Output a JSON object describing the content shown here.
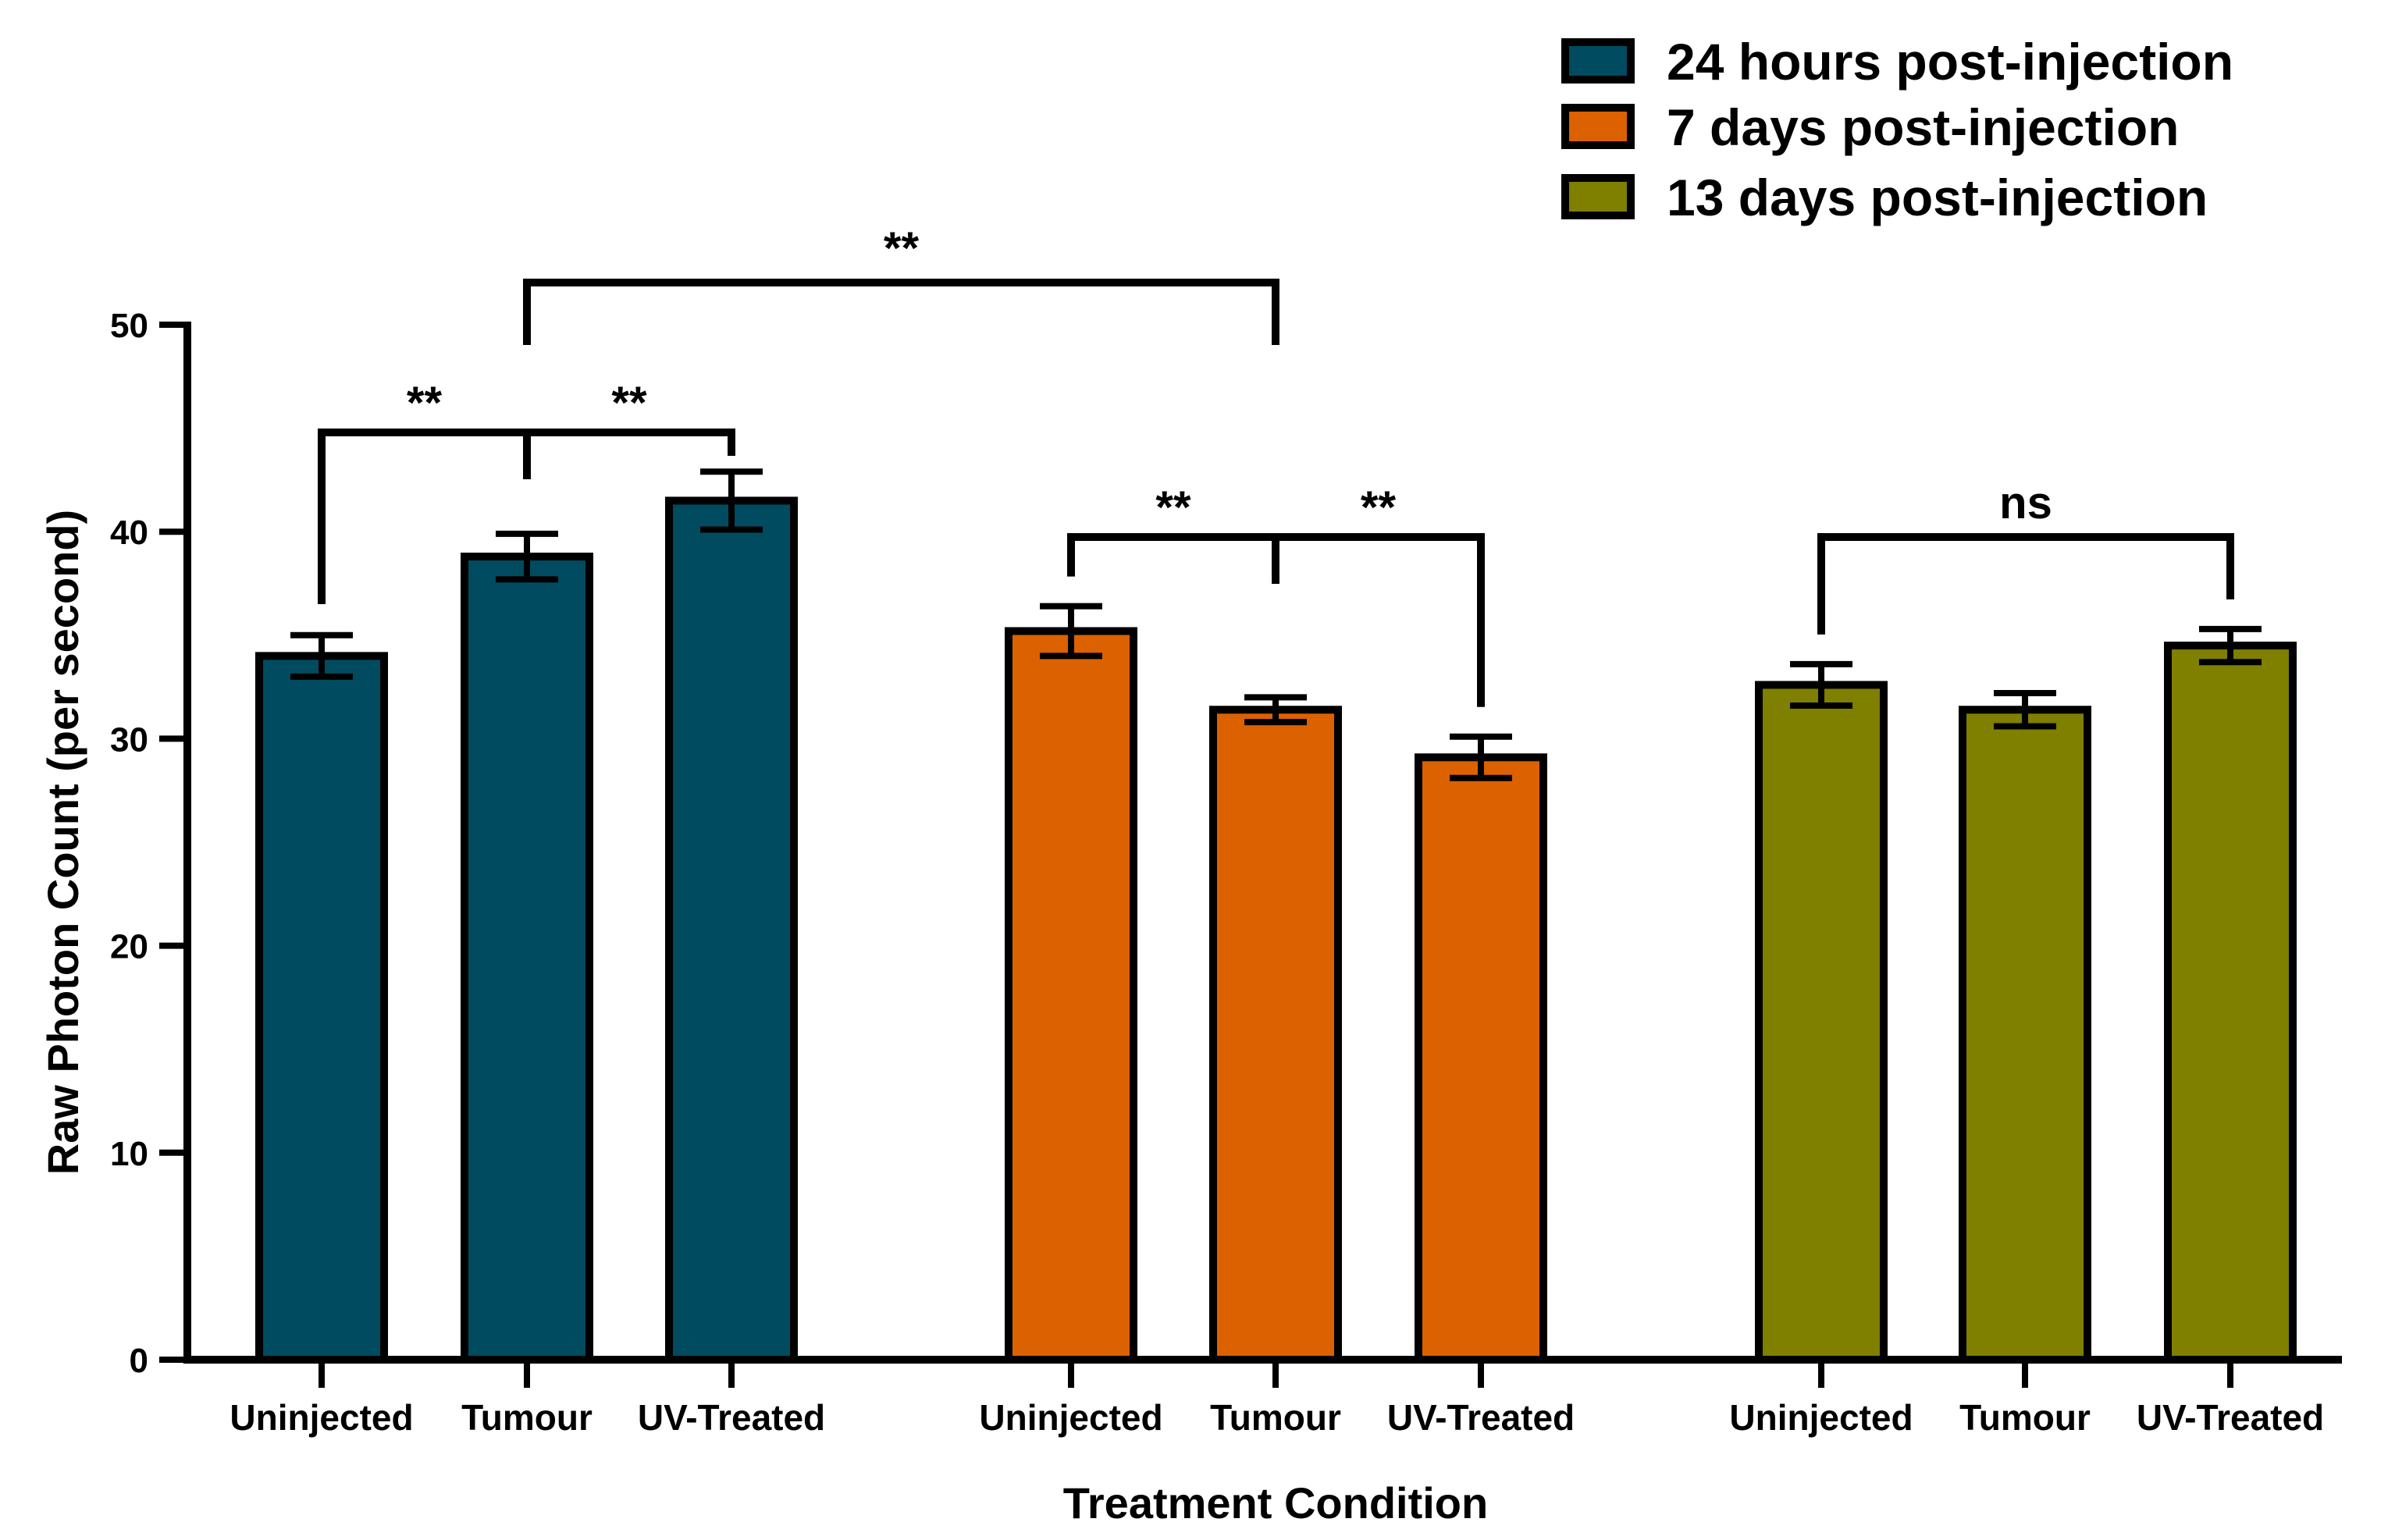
{
  "chart_data": {
    "type": "bar",
    "title": "",
    "xlabel": "Treatment Condition",
    "ylabel": "Raw Photon Count  (per second)",
    "ylim": [
      0,
      50
    ],
    "yticks": [
      "0",
      "10",
      "20",
      "30",
      "40",
      "50"
    ],
    "legend_position": "top-right",
    "groups": [
      {
        "name": "24 hours post-injection",
        "color": "#004b5f",
        "categories": [
          "Uninjected",
          "Tumour",
          "UV-Treated"
        ],
        "values": [
          34.0,
          38.8,
          41.5
        ],
        "errors": [
          1.0,
          1.1,
          1.4
        ]
      },
      {
        "name": "7 days post-injection",
        "color": "#dc6100",
        "categories": [
          "Uninjected",
          "Tumour",
          "UV-Treated"
        ],
        "values": [
          35.2,
          31.4,
          29.1
        ],
        "errors": [
          1.2,
          0.6,
          1.0
        ]
      },
      {
        "name": "13 days post-injection",
        "color": "#7f7f00",
        "categories": [
          "Uninjected",
          "Tumour",
          "UV-Treated"
        ],
        "values": [
          32.6,
          31.4,
          34.5
        ],
        "errors": [
          1.0,
          0.8,
          0.8
        ]
      }
    ],
    "significance": [
      {
        "label": "**",
        "group_a": 0,
        "bar_a": 0,
        "group_b": 0,
        "bar_b": 2,
        "center_bar": 1,
        "split": true
      },
      {
        "label": "**",
        "group_a": 0,
        "bar_a": 1,
        "group_b": 1,
        "bar_b": 1,
        "split": false
      },
      {
        "label": "**",
        "group_a": 1,
        "bar_a": 0,
        "group_b": 1,
        "bar_b": 2,
        "center_bar": 1,
        "split": true
      },
      {
        "label": "ns",
        "group_a": 2,
        "bar_a": 0,
        "group_b": 2,
        "bar_b": 2,
        "split": false
      }
    ]
  }
}
